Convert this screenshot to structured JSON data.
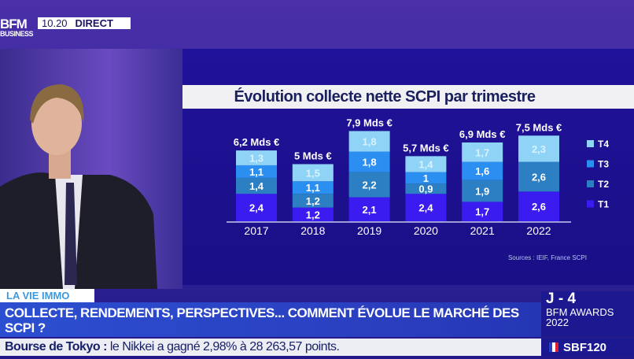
{
  "header": {
    "logo_line1": "BFM",
    "logo_line2": "BUSINESS",
    "time": "10.20",
    "live_label": "DIRECT"
  },
  "chart_data": {
    "type": "bar",
    "stacked": true,
    "title": "Évolution collecte nette SCPI par trimestre",
    "categories": [
      "2017",
      "2018",
      "2019",
      "2020",
      "2021",
      "2022"
    ],
    "series": [
      {
        "name": "T1",
        "values": [
          2.4,
          1.2,
          2.1,
          2.4,
          1.7,
          2.6
        ],
        "labels": [
          "2,4",
          "1,2",
          "2,1",
          "2,4",
          "1,7",
          "2,6"
        ],
        "color": "#3b1cf0"
      },
      {
        "name": "T2",
        "values": [
          1.4,
          1.2,
          2.2,
          0.9,
          1.9,
          2.6
        ],
        "labels": [
          "1,4",
          "1,2",
          "2,2",
          "0,9",
          "1,9",
          "2,6"
        ],
        "color": "#2c7fc2"
      },
      {
        "name": "T3",
        "values": [
          1.1,
          1.1,
          1.8,
          1.0,
          1.6,
          0
        ],
        "labels": [
          "1,1",
          "1,1",
          "1,8",
          "1",
          "1,6",
          ""
        ],
        "color": "#2b8ff2"
      },
      {
        "name": "T4",
        "values": [
          1.3,
          1.5,
          1.8,
          1.4,
          1.7,
          2.3
        ],
        "labels": [
          "1,3",
          "1,5",
          "1,8",
          "1,4",
          "1,7",
          "2,3"
        ],
        "color": "#8fd4f6"
      }
    ],
    "totals": [
      "6,2 Mds €",
      "5 Mds €",
      "7,9 Mds €",
      "5,7 Mds €",
      "6,9 Mds €",
      "7,5 Mds €"
    ],
    "legend_position": "right",
    "grid": false,
    "source": "Sources : IEIF, France SCPI"
  },
  "lower_third": {
    "tag": "LA VIE IMMO",
    "headline": "COLLECTE, RENDEMENTS, PERSPECTIVES... COMMENT ÉVOLUE LE MARCHÉ DES SCPI ?",
    "ticker_label": "Bourse de Tokyo :",
    "ticker_text": "le Nikkei a gagné 2,98% à 28 263,57 points.",
    "countdown": "J - 4",
    "awards_line1": "BFM AWARDS",
    "awards_line2": "2022",
    "index": "SBF120"
  }
}
